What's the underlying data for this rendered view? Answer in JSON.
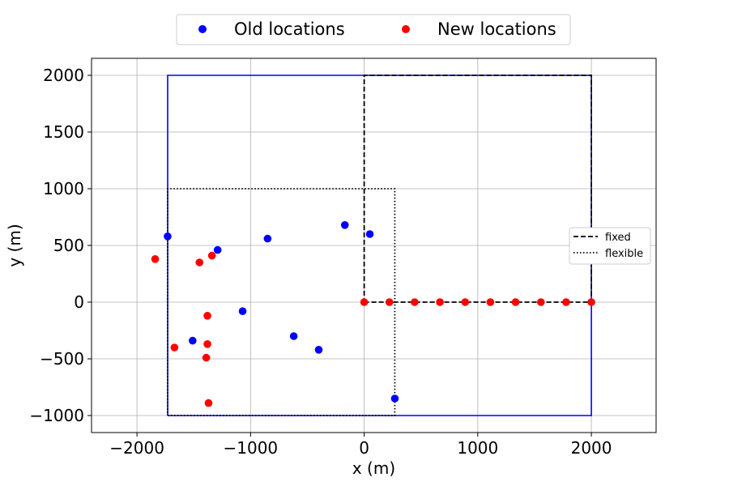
{
  "chart_data": {
    "type": "scatter",
    "title": "",
    "xlabel": "x (m)",
    "ylabel": "y (m)",
    "xlim": [
      -2400,
      2570
    ],
    "ylim": [
      -1150,
      2150
    ],
    "xticks": [
      -2000,
      -1000,
      0,
      1000,
      2000
    ],
    "yticks": [
      -1000,
      -500,
      0,
      500,
      1000,
      1500,
      2000
    ],
    "xtick_labels": [
      "−2000",
      "−1000",
      "0",
      "1000",
      "2000"
    ],
    "ytick_labels": [
      "−1000",
      "−500",
      "0",
      "500",
      "1000",
      "1500",
      "2000"
    ],
    "grid": true,
    "series": [
      {
        "name": "Old locations",
        "color": "#0000ff",
        "points": [
          [
            -1730,
            580
          ],
          [
            -1290,
            460
          ],
          [
            -850,
            560
          ],
          [
            -170,
            680
          ],
          [
            50,
            600
          ],
          [
            -1070,
            -80
          ],
          [
            -1510,
            -340
          ],
          [
            -620,
            -300
          ],
          [
            -400,
            -420
          ],
          [
            270,
            -850
          ]
        ]
      },
      {
        "name": "New locations",
        "color": "#ff0000",
        "points": [
          [
            -1840,
            380
          ],
          [
            -1450,
            350
          ],
          [
            -1340,
            410
          ],
          [
            -1380,
            -120
          ],
          [
            -1380,
            -370
          ],
          [
            -1390,
            -490
          ],
          [
            -1670,
            -400
          ],
          [
            -1370,
            -890
          ],
          [
            0,
            0
          ],
          [
            222,
            0
          ],
          [
            444,
            0
          ],
          [
            667,
            0
          ],
          [
            889,
            0
          ],
          [
            1111,
            0
          ],
          [
            1333,
            0
          ],
          [
            1556,
            0
          ],
          [
            1778,
            0
          ],
          [
            2000,
            0
          ]
        ]
      }
    ],
    "boundaries": [
      {
        "name": "outer-boundary",
        "style": "solid",
        "color": "#0000ff",
        "points": [
          [
            -1730,
            -1000
          ],
          [
            2000,
            -1000
          ],
          [
            2000,
            2000
          ],
          [
            -1730,
            2000
          ],
          [
            -1730,
            -1000
          ]
        ]
      },
      {
        "name": "fixed",
        "style": "dashed",
        "color": "#000000",
        "points": [
          [
            0,
            0
          ],
          [
            2000,
            0
          ],
          [
            2000,
            2000
          ],
          [
            0,
            2000
          ],
          [
            0,
            0
          ]
        ]
      },
      {
        "name": "flexible",
        "style": "dotted",
        "color": "#000000",
        "points": [
          [
            -1730,
            -1000
          ],
          [
            270,
            -1000
          ],
          [
            270,
            1000
          ],
          [
            -1730,
            1000
          ],
          [
            -1730,
            -1000
          ]
        ]
      }
    ],
    "legend_top": {
      "placement": "top-center",
      "entries": [
        {
          "label": "Old locations",
          "color": "#0000ff",
          "marker": "circle"
        },
        {
          "label": "New locations",
          "color": "#ff0000",
          "marker": "circle"
        }
      ]
    },
    "legend_lines": {
      "placement": "right",
      "entries": [
        {
          "label": "fixed",
          "style": "dashed",
          "color": "#000000"
        },
        {
          "label": "flexible",
          "style": "dotted",
          "color": "#000000"
        }
      ]
    }
  }
}
